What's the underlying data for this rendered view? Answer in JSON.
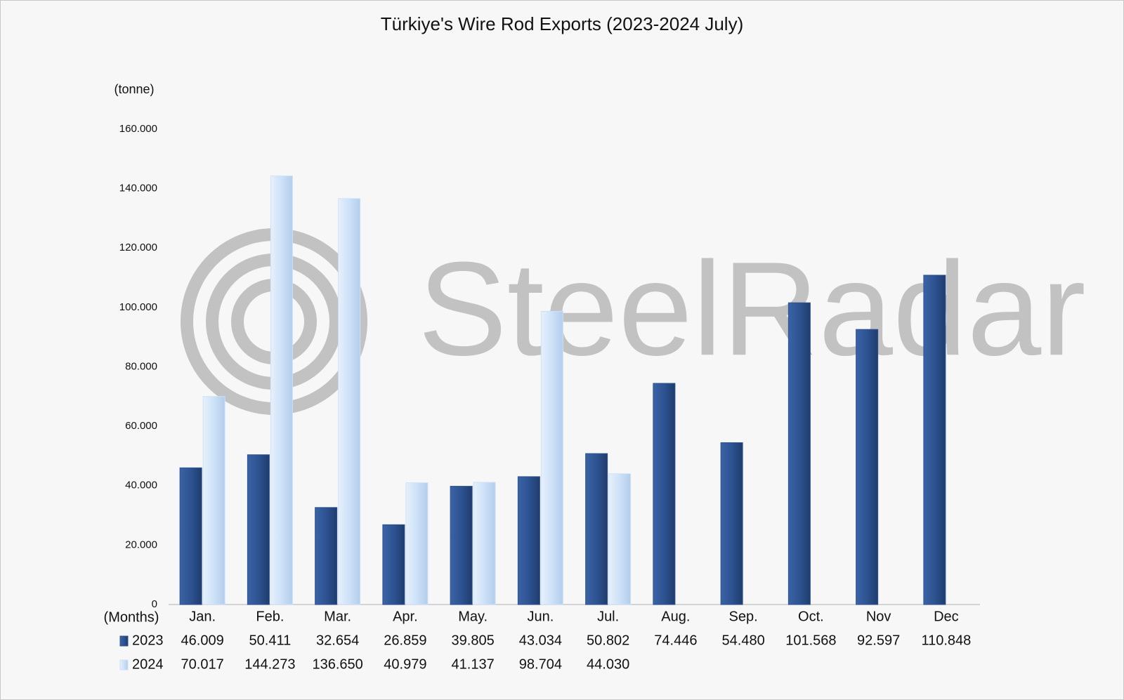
{
  "chart_data": {
    "type": "bar",
    "title": "Türkiye's Wire Rod Exports (2023-2024 July)",
    "y_label": "(tonne)",
    "x_label": "(Months)",
    "watermark": "SteelRadar",
    "categories": [
      "Jan.",
      "Feb.",
      "Mar.",
      "Apr.",
      "May.",
      "Jun.",
      "Jul.",
      "Aug.",
      "Sep.",
      "Oct.",
      "Nov",
      "Dec"
    ],
    "series": [
      {
        "name": "2023",
        "color": "#2e5391",
        "values": [
          46009,
          50411,
          32654,
          26859,
          39805,
          43034,
          50802,
          74446,
          54480,
          101568,
          92597,
          110848
        ],
        "value_labels": [
          "46.009",
          "50.411",
          "32.654",
          "26.859",
          "39.805",
          "43.034",
          "50.802",
          "74.446",
          "54.480",
          "101.568",
          "92.597",
          "110.848"
        ]
      },
      {
        "name": "2024",
        "color": "#cde1f7",
        "values": [
          70017,
          144273,
          136650,
          40979,
          41137,
          98704,
          44030,
          null,
          null,
          null,
          null,
          null
        ],
        "value_labels": [
          "70.017",
          "144.273",
          "136.650",
          "40.979",
          "41.137",
          "98.704",
          "44.030",
          null,
          null,
          null,
          null,
          null
        ]
      }
    ],
    "ylim": [
      0,
      160000
    ],
    "yticks": [
      0,
      {
        "value": 20000,
        "label": "20.000"
      },
      {
        "value": 40000,
        "label": "40.000"
      },
      {
        "value": 60000,
        "label": "60.000"
      },
      {
        "value": 80000,
        "label": "80.000"
      },
      {
        "value": 100000,
        "label": "100.000"
      },
      {
        "value": 120000,
        "label": "120.000"
      },
      {
        "value": 140000,
        "label": "140.000"
      },
      {
        "value": 160000,
        "label": "160.000"
      }
    ],
    "grid": false
  }
}
